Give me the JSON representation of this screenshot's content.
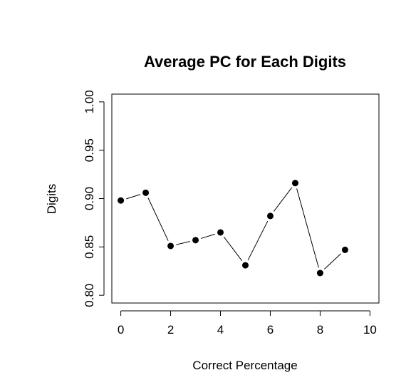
{
  "chart_data": {
    "type": "line",
    "title": "Average PC for Each Digits",
    "xlabel": "Correct Percentage",
    "ylabel": "Digits",
    "xlim": [
      -0.36,
      10.36
    ],
    "ylim": [
      0.792,
      1.008
    ],
    "xticks": [
      "0",
      "2",
      "4",
      "6",
      "8",
      "10"
    ],
    "yticks": [
      "0.80",
      "0.85",
      "0.90",
      "0.95",
      "1.00"
    ],
    "series": [
      {
        "x": [
          0,
          1,
          2,
          3,
          4,
          5,
          6,
          7,
          8,
          9
        ],
        "values": [
          0.898,
          0.906,
          0.851,
          0.857,
          0.865,
          0.831,
          0.882,
          0.916,
          0.823,
          0.847
        ]
      }
    ],
    "grid": false,
    "marker": "filled-circle",
    "line_style": "points-connected-with-gaps"
  }
}
